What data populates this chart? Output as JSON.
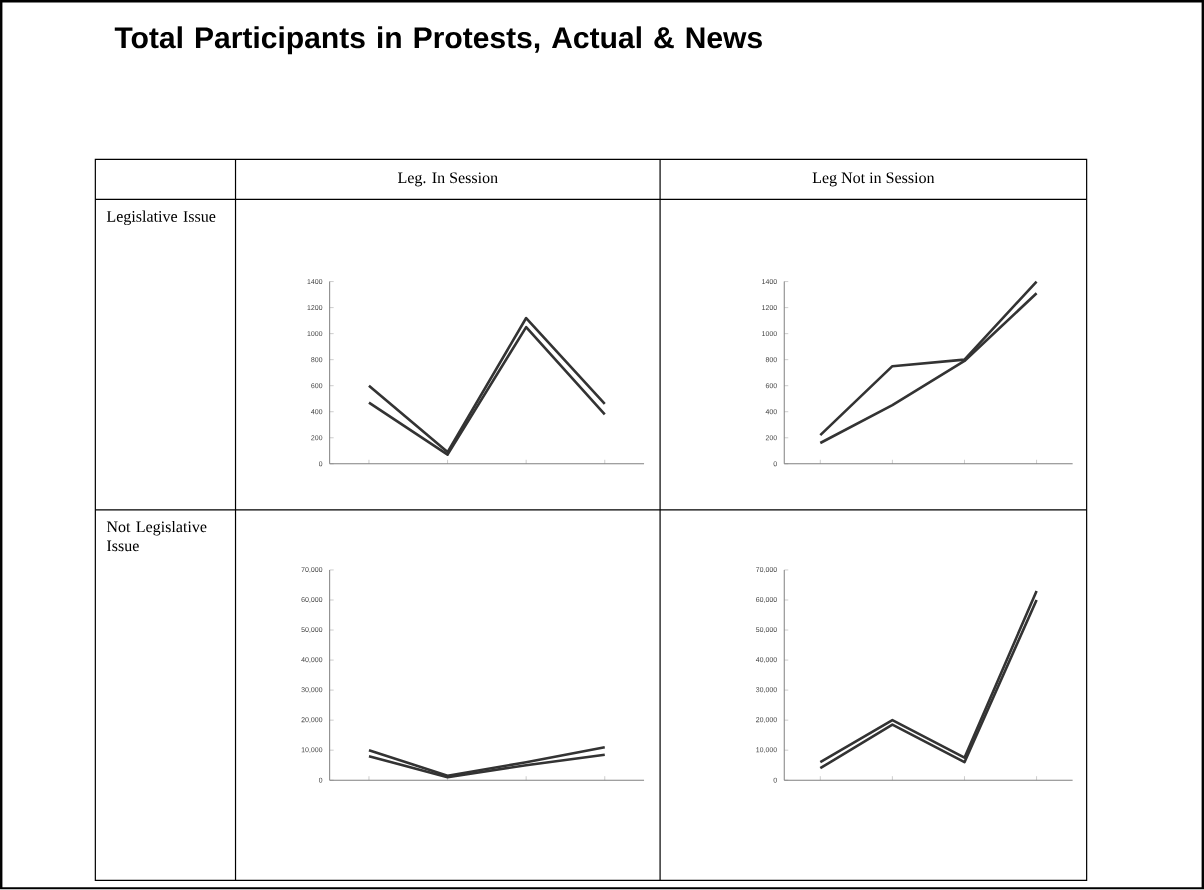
{
  "chart_data": [
    {
      "type": "other",
      "title": "Total Participants in Protests, Actual & News",
      "annotations": [
        "Leg. In Session",
        "Leg Not in Session",
        "Legislative Issue",
        "Not Legislative Issue"
      ]
    },
    {
      "type": "line",
      "categories": [
        null,
        null,
        null,
        null
      ],
      "ylim": [
        0,
        1400
      ],
      "yticks": [
        0,
        200,
        400,
        600,
        800,
        1000,
        1200,
        1400
      ],
      "marker": "none",
      "series": [
        {
          "color": "#333333",
          "values": [
            600,
            90,
            1120,
            460
          ]
        },
        {
          "color": "#333333",
          "values": [
            470,
            70,
            1050,
            380
          ]
        }
      ]
    },
    {
      "type": "line",
      "categories": [
        null,
        null,
        null,
        null
      ],
      "ylim": [
        0,
        1400
      ],
      "yticks": [
        0,
        200,
        400,
        600,
        800,
        1000,
        1200,
        1400
      ],
      "marker": "none",
      "series": [
        {
          "color": "#333333",
          "values": [
            220,
            750,
            800,
            1400
          ]
        },
        {
          "color": "#333333",
          "values": [
            160,
            450,
            790,
            1310
          ]
        }
      ]
    },
    {
      "type": "line",
      "categories": [
        null,
        null,
        null,
        null
      ],
      "ylim": [
        0,
        70000
      ],
      "yticks": [
        {
          "value": 0,
          "label": "0"
        },
        {
          "value": 10000,
          "label": "10,000"
        },
        {
          "value": 20000,
          "label": "20,000"
        },
        {
          "value": 30000,
          "label": "30,000"
        },
        {
          "value": 40000,
          "label": "40,000"
        },
        {
          "value": 50000,
          "label": "50,000"
        },
        {
          "value": 60000,
          "label": "60,000"
        },
        {
          "value": 70000,
          "label": "70,000"
        }
      ],
      "marker": "none",
      "series": [
        {
          "color": "#333333",
          "values": [
            10000,
            1500,
            6000,
            11000
          ]
        },
        {
          "color": "#333333",
          "values": [
            8000,
            1000,
            5000,
            8500
          ]
        }
      ]
    },
    {
      "type": "line",
      "categories": [
        null,
        null,
        null,
        null
      ],
      "ylim": [
        0,
        70000
      ],
      "yticks": [
        {
          "value": 0,
          "label": "0"
        },
        {
          "value": 10000,
          "label": "10,000"
        },
        {
          "value": 20000,
          "label": "20,000"
        },
        {
          "value": 30000,
          "label": "30,000"
        },
        {
          "value": 40000,
          "label": "40,000"
        },
        {
          "value": 50000,
          "label": "50,000"
        },
        {
          "value": 60000,
          "label": "60,000"
        },
        {
          "value": 70000,
          "label": "70,000"
        }
      ],
      "marker": "none",
      "series": [
        {
          "color": "#333333",
          "values": [
            6000,
            20000,
            7500,
            63000
          ]
        },
        {
          "color": "#333333",
          "values": [
            4000,
            18500,
            6000,
            60000
          ]
        }
      ]
    }
  ]
}
